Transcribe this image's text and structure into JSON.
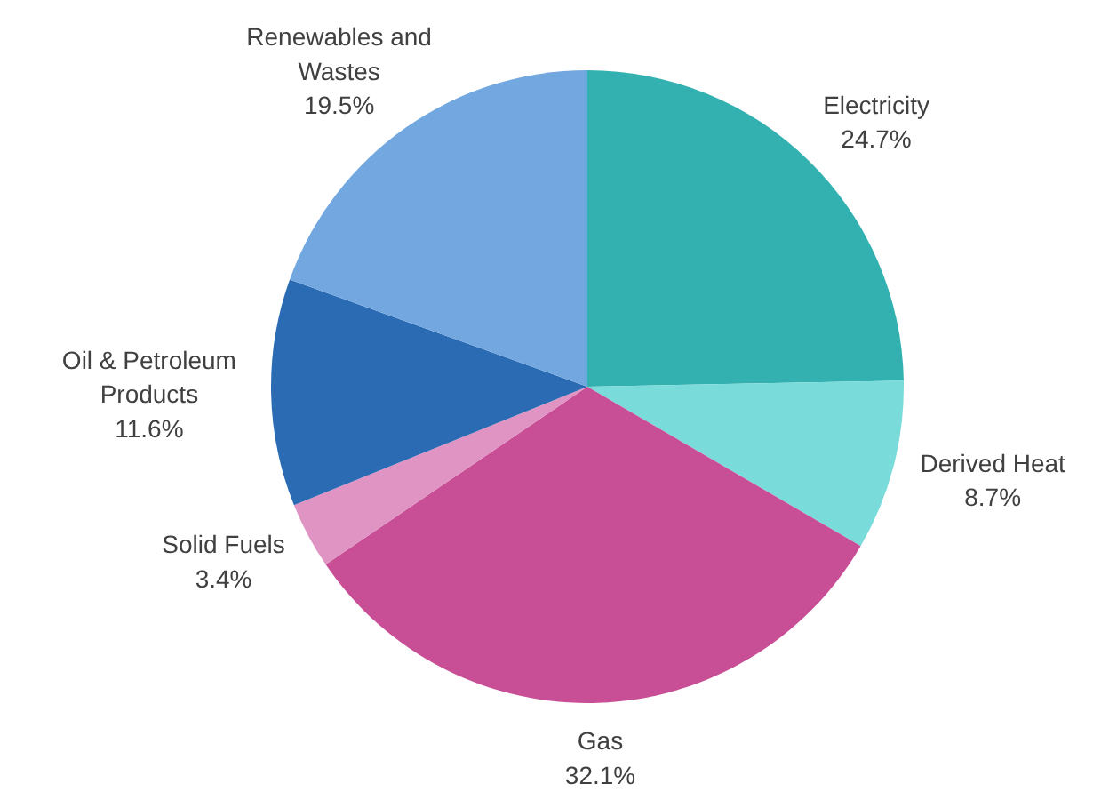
{
  "chart_data": {
    "type": "pie",
    "categories": [
      "Electricity",
      "Derived Heat",
      "Gas",
      "Solid Fuels",
      "Oil & Petroleum Products",
      "Renewables and Wastes"
    ],
    "values": [
      24.7,
      8.7,
      32.1,
      3.4,
      11.6,
      19.5
    ],
    "colors": [
      "#33b0b0",
      "#7adbdb",
      "#c84f96",
      "#df94c4",
      "#2a6bb3",
      "#72a8df"
    ],
    "value_labels": [
      "24.7%",
      "8.7%",
      "32.1%",
      "3.4%",
      "11.6%",
      "19.5%"
    ]
  }
}
